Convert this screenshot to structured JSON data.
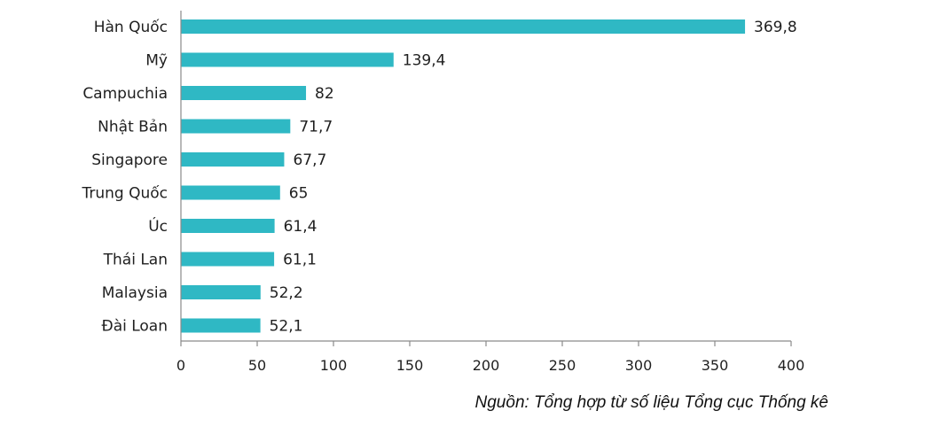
{
  "chart_data": {
    "type": "bar",
    "orientation": "horizontal",
    "categories": [
      "Hàn Quốc",
      "Mỹ",
      "Campuchia",
      "Nhật Bản",
      "Singapore",
      "Trung Quốc",
      "Úc",
      "Thái Lan",
      "Malaysia",
      "Đài Loan"
    ],
    "values": [
      369.8,
      139.4,
      82,
      71.7,
      67.7,
      65,
      61.4,
      61.1,
      52.2,
      52.1
    ],
    "value_labels": [
      "369,8",
      "139,4",
      "82",
      "71,7",
      "67,7",
      "65",
      "61,4",
      "61,1",
      "52,2",
      "52,1"
    ],
    "xlim": [
      0,
      400
    ],
    "xticks": [
      0,
      50,
      100,
      150,
      200,
      250,
      300,
      350,
      400
    ],
    "xtick_labels": [
      "0",
      "50",
      "100",
      "150",
      "200",
      "250",
      "300",
      "350",
      "400"
    ],
    "bar_color": "#2fb8c4",
    "grid": false,
    "title": "",
    "xlabel": "",
    "ylabel": ""
  },
  "source_note": "Nguồn: Tổng hợp từ số liệu Tổng cục Thống kê"
}
